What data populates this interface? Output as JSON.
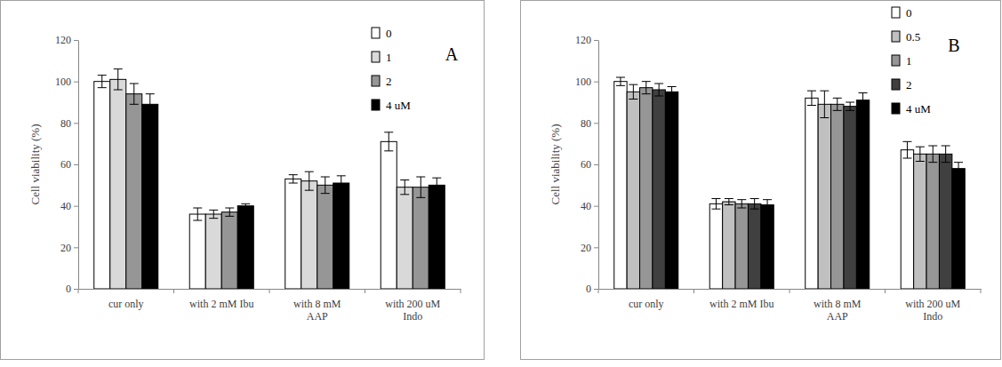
{
  "chart_data": [
    {
      "type": "bar",
      "annotation": "A",
      "y_label": "Cell viability (%)",
      "categories": [
        "cur only",
        "with 2 mM Ibu",
        "with 8 mM\nAAP",
        "with 200 uM\nIndo"
      ],
      "ylim": [
        0,
        120
      ],
      "yticks": [
        0,
        20,
        40,
        60,
        80,
        100,
        120
      ],
      "legend": "upper right",
      "series": [
        {
          "name": "0",
          "color": "#ffffff",
          "values": [
            100,
            36,
            53,
            71
          ],
          "errors": [
            3,
            3,
            2,
            4.5
          ]
        },
        {
          "name": "1",
          "color": "#d9d9d9",
          "values": [
            101,
            36,
            52,
            49
          ],
          "errors": [
            5,
            2,
            4.5,
            3.5
          ]
        },
        {
          "name": "2",
          "color": "#969696",
          "values": [
            94,
            37,
            50,
            49
          ],
          "errors": [
            5,
            2,
            4,
            5
          ]
        },
        {
          "name": "4 uM",
          "color": "#000000",
          "values": [
            89,
            40,
            51,
            50
          ],
          "errors": [
            5,
            1,
            3.5,
            3.5
          ]
        }
      ]
    },
    {
      "type": "bar",
      "annotation": "B",
      "y_label": "Cell viability (%)",
      "categories": [
        "cur only",
        "with 2 mM Ibu",
        "with 8 mM\nAAP",
        "with 200 uM\nIndo"
      ],
      "ylim": [
        0,
        120
      ],
      "yticks": [
        0,
        20,
        40,
        60,
        80,
        100,
        120
      ],
      "legend": "upper right",
      "series": [
        {
          "name": "0",
          "color": "#ffffff",
          "values": [
            100,
            41,
            92,
            67
          ],
          "errors": [
            2,
            2.5,
            3.5,
            4
          ]
        },
        {
          "name": "0.5",
          "color": "#c0c0c0",
          "values": [
            95,
            42,
            89,
            65
          ],
          "errors": [
            3.5,
            1.5,
            6.5,
            3.5
          ]
        },
        {
          "name": "1",
          "color": "#969696",
          "values": [
            97,
            41,
            89,
            65
          ],
          "errors": [
            3,
            2,
            3,
            4
          ]
        },
        {
          "name": "2",
          "color": "#404040",
          "values": [
            96,
            41,
            88,
            65
          ],
          "errors": [
            3,
            2.5,
            2,
            4
          ]
        },
        {
          "name": "4 uM",
          "color": "#000000",
          "values": [
            95,
            40.5,
            91,
            58
          ],
          "errors": [
            2.5,
            2.5,
            3.5,
            3
          ]
        }
      ]
    }
  ]
}
